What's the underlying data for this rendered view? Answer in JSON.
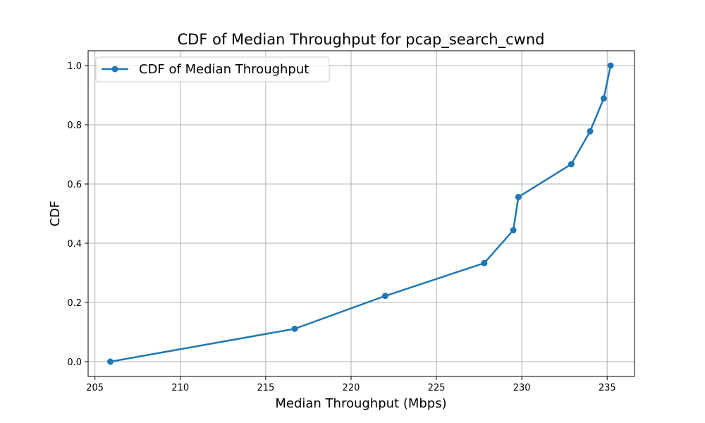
{
  "chart_data": {
    "type": "line",
    "title": "CDF of Median Throughput for pcap_search_cwnd",
    "xlabel": "Median Throughput (Mbps)",
    "ylabel": "CDF",
    "xlim": [
      204.6,
      236.6
    ],
    "ylim": [
      -0.05,
      1.05
    ],
    "x_ticks": [
      205,
      210,
      215,
      220,
      225,
      230,
      235
    ],
    "y_ticks": [
      0.0,
      0.2,
      0.4,
      0.6,
      0.8,
      1.0
    ],
    "x_tick_labels": [
      "205",
      "210",
      "215",
      "220",
      "225",
      "230",
      "235"
    ],
    "y_tick_labels": [
      "0.0",
      "0.2",
      "0.4",
      "0.6",
      "0.8",
      "1.0"
    ],
    "grid": true,
    "legend_position": "top-left",
    "series": [
      {
        "name": "CDF of Median Throughput",
        "color": "#1f77b4",
        "marker": "circle",
        "x": [
          205.9,
          216.7,
          222.0,
          227.8,
          229.5,
          229.8,
          232.9,
          234.0,
          234.8,
          235.2
        ],
        "y": [
          0.0,
          0.111,
          0.222,
          0.333,
          0.444,
          0.556,
          0.667,
          0.778,
          0.889,
          1.0
        ]
      }
    ]
  }
}
